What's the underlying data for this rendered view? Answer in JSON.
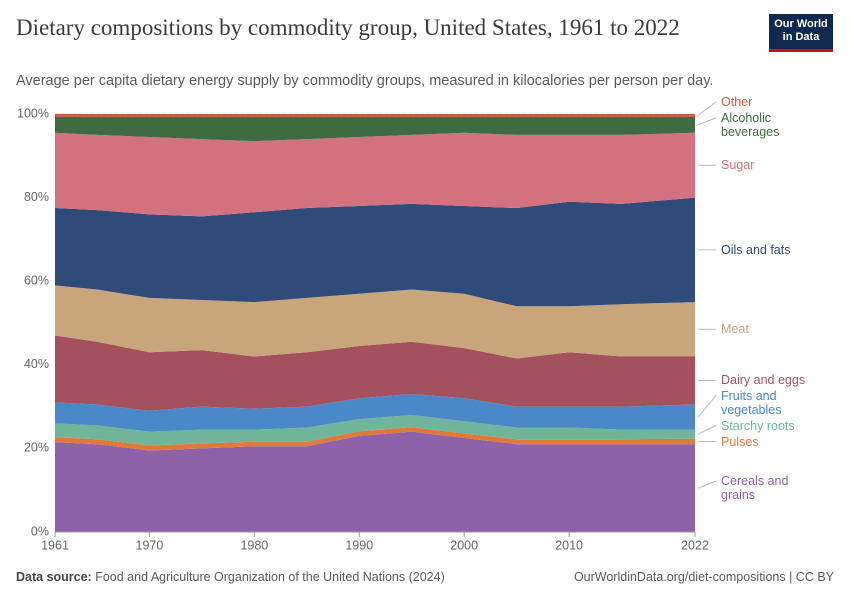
{
  "logo": "Our World in Data",
  "chart_data": {
    "type": "stacked-area",
    "title": "Dietary compositions by commodity group, United States, 1961 to 2022",
    "subtitle": "Average per capita dietary energy supply by commodity groups, measured in kilocalories per person per day.",
    "source_label": "Data source:",
    "source": "Food and Agriculture Organization of the United Nations (2024)",
    "link": "OurWorldinData.org/diet-compositions | CC BY",
    "x": [
      1961,
      1965,
      1970,
      1975,
      1980,
      1985,
      1990,
      1995,
      2000,
      2005,
      2010,
      2015,
      2022
    ],
    "xlim": [
      1961,
      2022
    ],
    "xticks": [
      1961,
      1970,
      1980,
      1990,
      2000,
      2010,
      2022
    ],
    "ylim": [
      0,
      100
    ],
    "yticks": [
      {
        "value": 0,
        "label": "0%"
      },
      {
        "value": 20,
        "label": "20%"
      },
      {
        "value": 40,
        "label": "40%"
      },
      {
        "value": 60,
        "label": "60%"
      },
      {
        "value": 80,
        "label": "80%"
      },
      {
        "value": 100,
        "label": "100%"
      }
    ],
    "grid": true,
    "series": [
      {
        "name": "Cereals and grains",
        "color": "#8e62a8",
        "values": [
          21.5,
          21,
          19.5,
          20,
          20.5,
          20.5,
          23,
          24,
          22.5,
          21,
          21,
          21,
          21
        ]
      },
      {
        "name": "Pulses",
        "color": "#e07a3a",
        "values": [
          1.2,
          1.2,
          1.2,
          1.2,
          1.1,
          1.1,
          1.1,
          1.1,
          1.1,
          1.2,
          1.2,
          1.2,
          1.3
        ]
      },
      {
        "name": "Starchy roots",
        "color": "#6fb59a",
        "values": [
          3.3,
          3.3,
          3.3,
          3.3,
          2.9,
          3.4,
          2.9,
          2.9,
          2.9,
          2.8,
          2.8,
          2.3,
          2.2
        ]
      },
      {
        "name": "Fruits and vegetables",
        "color": "#4a88c8",
        "values": [
          5,
          5,
          5,
          5.5,
          5,
          5,
          5,
          5,
          5.5,
          5,
          5,
          5.5,
          6
        ]
      },
      {
        "name": "Dairy and eggs",
        "color": "#a3525d",
        "values": [
          16,
          15,
          14,
          13.5,
          12.5,
          13,
          12.5,
          12.5,
          12,
          11.5,
          13,
          12,
          11.5
        ]
      },
      {
        "name": "Meat",
        "color": "#c9a57c",
        "values": [
          12,
          12.5,
          13,
          12,
          13,
          13,
          12.5,
          12.5,
          13,
          12.5,
          11,
          12.5,
          13
        ]
      },
      {
        "name": "Oils and fats",
        "color": "#2f4b7a",
        "values": [
          18.5,
          19,
          20,
          20,
          21.5,
          21.5,
          21,
          20.5,
          21,
          23.5,
          25,
          24,
          25
        ]
      },
      {
        "name": "Sugar",
        "color": "#d4717f",
        "values": [
          18,
          18,
          18.5,
          18.5,
          17,
          16.5,
          16.5,
          16.5,
          17.5,
          17.5,
          16,
          16.5,
          15.5
        ]
      },
      {
        "name": "Alcoholic beverages",
        "color": "#3e6b40",
        "values": [
          3.8,
          4.3,
          4.8,
          5.3,
          5.8,
          5.3,
          4.8,
          4.3,
          3.8,
          4.3,
          4.3,
          4.3,
          3.8
        ]
      },
      {
        "name": "Other",
        "color": "#c95e3d",
        "values": [
          0.7,
          0.7,
          0.7,
          0.7,
          0.7,
          0.7,
          0.7,
          0.7,
          0.7,
          0.7,
          0.7,
          0.7,
          0.7
        ]
      }
    ]
  }
}
